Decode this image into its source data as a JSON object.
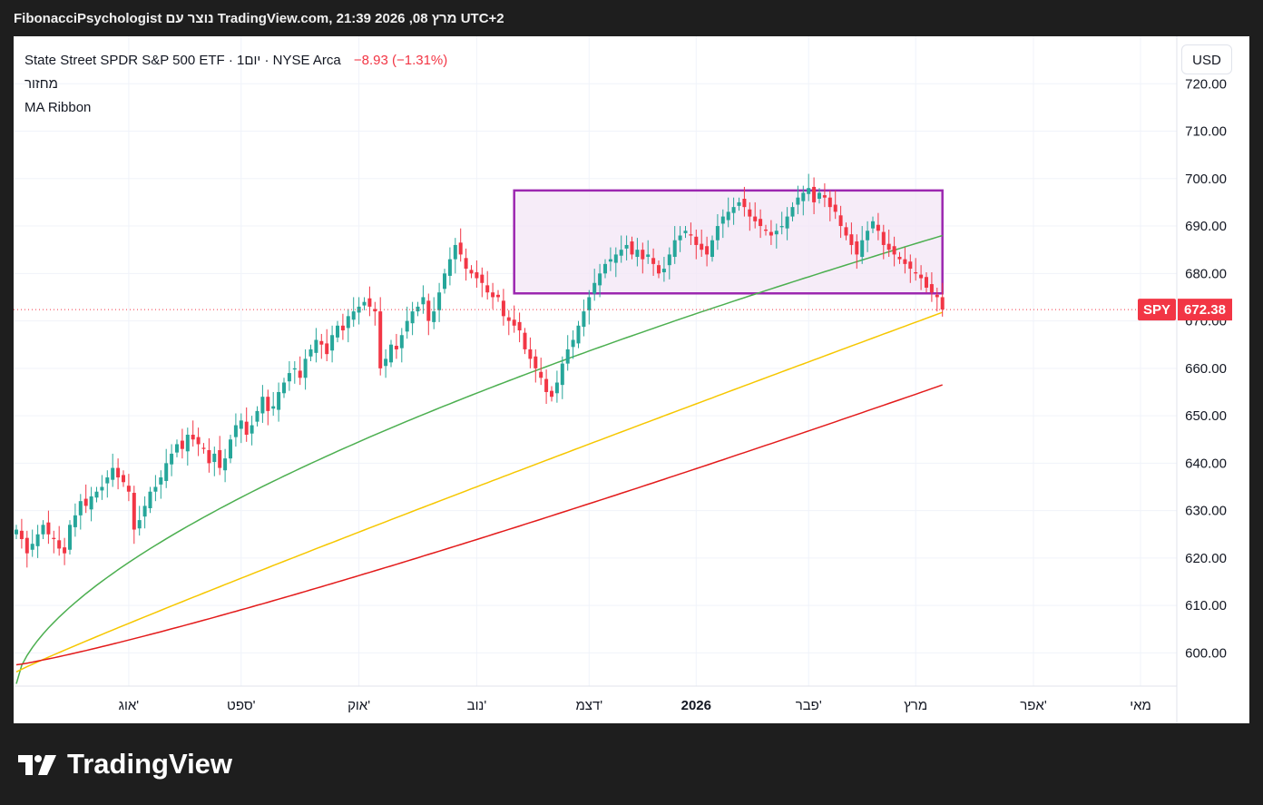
{
  "header": {
    "title": "FibonacciPsychologist נוצר עם TradingView.com, מרץ 08, 2026 21:39 UTC+2"
  },
  "legend": {
    "symbol": "State Street SPDR S&P 500 ETF · 1יום · NYSE Arca",
    "change": "−8.93 (−1.31%)",
    "line2": "מחזור",
    "line3": "MA Ribbon"
  },
  "currency_button": "USD",
  "brand": {
    "name": "TradingView"
  },
  "colors": {
    "up": "#26a69a",
    "down": "#f23645",
    "ma_green": "#4caf50",
    "ma_yellow": "#f6c700",
    "ma_red": "#e31b1b",
    "box_border": "#9c27b0",
    "box_fill": "#f3e5f5"
  },
  "chart_data": {
    "type": "candlestick",
    "symbol": "SPY",
    "last_price": 672.38,
    "last_price_label": "672.38",
    "y_ticks": [
      "720.00",
      "710.00",
      "700.00",
      "690.00",
      "680.00",
      "670.00",
      "660.00",
      "650.00",
      "640.00",
      "630.00",
      "620.00",
      "610.00",
      "600.00"
    ],
    "ylim": [
      593,
      730
    ],
    "x_labels": [
      "אוג'",
      "ספט'",
      "אוק'",
      "נוב'",
      "דצמ'",
      "2026",
      "פבר'",
      "מרץ",
      "אפר'",
      "מאי"
    ],
    "x_label_index": [
      21,
      42,
      64,
      86,
      107,
      127,
      148,
      168,
      190,
      210
    ],
    "box": {
      "from_index": 93,
      "to_index": 173,
      "low": 675.8,
      "high": 697.5
    },
    "closes": [
      626,
      624,
      621,
      623,
      625,
      627,
      625,
      624,
      622,
      621,
      627,
      629,
      632,
      631,
      633,
      634,
      635,
      637,
      639,
      637,
      636,
      634,
      626,
      628,
      631,
      634,
      635,
      637,
      640,
      642,
      644,
      643,
      646,
      645,
      644,
      643,
      640,
      642,
      639,
      641,
      645,
      648,
      649,
      646,
      648,
      651,
      654,
      651,
      652,
      655,
      657,
      659,
      660,
      658,
      662,
      664,
      666,
      665,
      663,
      667,
      669,
      668,
      671,
      672,
      673,
      674,
      673,
      672,
      660,
      662,
      665,
      664,
      667,
      670,
      672,
      673,
      675,
      670,
      672,
      676,
      680,
      683,
      686,
      684,
      681,
      680,
      679,
      678,
      676,
      675,
      675,
      671,
      670,
      669,
      668,
      664,
      662,
      660,
      658,
      655,
      654,
      657,
      661,
      664,
      666,
      669,
      672,
      675,
      678,
      680,
      682,
      683,
      684,
      685,
      686,
      684,
      685,
      683,
      684,
      682,
      680,
      681,
      684,
      687,
      688,
      689,
      688,
      686,
      685,
      684,
      687,
      690,
      692,
      693,
      694,
      695,
      694,
      692,
      691,
      690,
      689,
      688,
      689,
      690,
      692,
      694,
      696,
      697,
      698,
      695,
      697,
      696,
      694,
      693,
      690,
      688,
      686,
      684,
      687,
      689,
      691,
      689,
      686,
      685,
      684,
      683,
      682,
      681,
      680,
      679,
      677,
      676,
      675,
      672.4
    ],
    "ma_green": {
      "start_value": 593.5,
      "end_value": 688,
      "end_index": 173
    },
    "ma_yellow": {
      "start_value": 596,
      "end_value": 671.8,
      "end_index": 173
    },
    "ma_red": {
      "start_value": 597.5,
      "end_value": 656.5,
      "end_index": 173
    }
  }
}
